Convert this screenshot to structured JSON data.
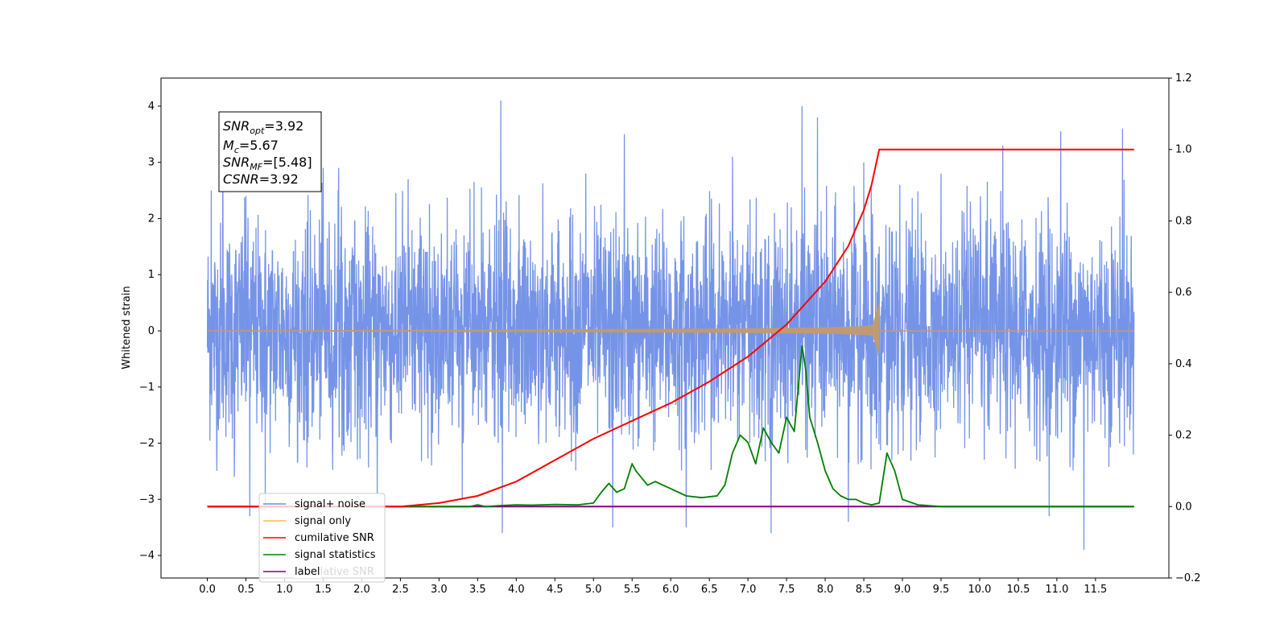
{
  "chart_data": {
    "type": "line",
    "ylabel": "Whitened strain",
    "xlim": [
      -0.6,
      12.45
    ],
    "ylim_left": [
      -4.4,
      4.5
    ],
    "ylim_right": [
      -0.2,
      1.2
    ],
    "x_ticks": [
      0.0,
      0.5,
      1.0,
      1.5,
      2.0,
      2.5,
      3.0,
      3.5,
      4.0,
      4.5,
      5.0,
      5.5,
      6.0,
      6.5,
      7.0,
      7.5,
      8.0,
      8.5,
      9.0,
      9.5,
      10.0,
      10.5,
      11.0,
      11.5
    ],
    "x_tick_labels": [
      "0.0",
      "0.5",
      "1.0",
      "1.5",
      "2.0",
      "2.5",
      "3.0",
      "3.5",
      "4.0",
      "4.5",
      "5.0",
      "5.5",
      "6.0",
      "6.5",
      "7.0",
      "7.5",
      "8.0",
      "8.5",
      "9.0",
      "9.5",
      "10.0",
      "10.5",
      "11.0",
      "11.5"
    ],
    "y_left_ticks": [
      4,
      3,
      2,
      1,
      0,
      -1,
      -2,
      -3,
      -4
    ],
    "y_left_tick_labels": [
      "4",
      "3",
      "2",
      "1",
      "0",
      "−1",
      "−2",
      "−3",
      "−4"
    ],
    "y_right_ticks": [
      1.2,
      1.0,
      0.8,
      0.6,
      0.4,
      0.2,
      0.0,
      -0.2
    ],
    "y_right_tick_labels": [
      "1.2",
      "1.0",
      "0.8",
      "0.6",
      "0.4",
      "0.2",
      "0.0",
      "−0.2"
    ],
    "annotation": {
      "lines": [
        {
          "sym": "SNR",
          "sub": "opt",
          "value": "=3.92"
        },
        {
          "sym": "M",
          "sub": "c",
          "value": "=5.67"
        },
        {
          "sym": "SNR",
          "sub": "MF",
          "value": "=[5.48]"
        },
        {
          "sym": "CSNR",
          "sub": "",
          "value": "=3.92"
        }
      ]
    },
    "series": [
      {
        "name": "signal+ noise",
        "color": "#6f8ee6",
        "axis": "left",
        "x_range": [
          0.0,
          12.0
        ],
        "envelope_upper": 2.4,
        "envelope_lower": -2.2,
        "spikes": [
          {
            "x": 0.05,
            "y": 2.5
          },
          {
            "x": 0.12,
            "y": -2.1
          },
          {
            "x": 0.2,
            "y": 3.2
          },
          {
            "x": 0.35,
            "y": -2.6
          },
          {
            "x": 0.5,
            "y": 2.4
          },
          {
            "x": 0.55,
            "y": -3.3
          },
          {
            "x": 0.75,
            "y": -3.2
          },
          {
            "x": 1.5,
            "y": 2.9
          },
          {
            "x": 1.7,
            "y": 2.9
          },
          {
            "x": 2.2,
            "y": -2.9
          },
          {
            "x": 2.6,
            "y": 2.7
          },
          {
            "x": 3.3,
            "y": -3.0
          },
          {
            "x": 3.8,
            "y": 4.1
          },
          {
            "x": 3.82,
            "y": -3.6
          },
          {
            "x": 4.9,
            "y": 2.8
          },
          {
            "x": 5.25,
            "y": -3.5
          },
          {
            "x": 5.4,
            "y": 3.5
          },
          {
            "x": 6.2,
            "y": -3.5
          },
          {
            "x": 6.8,
            "y": 3.1
          },
          {
            "x": 7.3,
            "y": -3.6
          },
          {
            "x": 7.7,
            "y": 4.0
          },
          {
            "x": 7.9,
            "y": 3.8
          },
          {
            "x": 8.3,
            "y": -3.4
          },
          {
            "x": 8.5,
            "y": 3.0
          },
          {
            "x": 9.5,
            "y": 2.8
          },
          {
            "x": 10.3,
            "y": 3.3
          },
          {
            "x": 10.9,
            "y": -3.3
          },
          {
            "x": 11.05,
            "y": 3.55
          },
          {
            "x": 11.35,
            "y": -3.9
          },
          {
            "x": 11.85,
            "y": 3.6
          }
        ]
      },
      {
        "name": "signal only",
        "color": "#ffb84d",
        "axis": "left",
        "x_range": [
          0.0,
          12.0
        ],
        "merger_time": 8.7,
        "peak_amplitude": 0.5
      },
      {
        "name": "cumilative SNR",
        "color": "#ff0000",
        "axis": "right",
        "x": [
          0.0,
          2.5,
          3.0,
          3.5,
          4.0,
          4.5,
          5.0,
          5.5,
          6.0,
          6.5,
          7.0,
          7.5,
          8.0,
          8.3,
          8.5,
          8.6,
          8.7,
          12.0
        ],
        "y": [
          0.0,
          0.0,
          0.01,
          0.03,
          0.07,
          0.13,
          0.19,
          0.24,
          0.29,
          0.35,
          0.42,
          0.51,
          0.63,
          0.73,
          0.83,
          0.9,
          1.0,
          1.0
        ]
      },
      {
        "name": "signal statistics",
        "color": "#008000",
        "axis": "right",
        "x": [
          0.0,
          3.4,
          3.5,
          3.6,
          3.8,
          4.0,
          4.2,
          4.5,
          4.8,
          5.0,
          5.1,
          5.2,
          5.3,
          5.4,
          5.5,
          5.55,
          5.7,
          5.8,
          5.9,
          6.0,
          6.1,
          6.2,
          6.4,
          6.6,
          6.7,
          6.8,
          6.9,
          7.0,
          7.1,
          7.2,
          7.3,
          7.4,
          7.5,
          7.6,
          7.7,
          7.75,
          7.8,
          7.9,
          8.0,
          8.1,
          8.2,
          8.3,
          8.4,
          8.5,
          8.6,
          8.7,
          8.8,
          8.9,
          9.0,
          9.2,
          9.5,
          12.0
        ],
        "y": [
          0.0,
          0.0,
          0.005,
          0.0,
          0.003,
          0.005,
          0.004,
          0.006,
          0.005,
          0.01,
          0.04,
          0.065,
          0.04,
          0.05,
          0.12,
          0.1,
          0.06,
          0.07,
          0.06,
          0.05,
          0.04,
          0.03,
          0.025,
          0.03,
          0.06,
          0.15,
          0.2,
          0.18,
          0.12,
          0.22,
          0.18,
          0.15,
          0.25,
          0.21,
          0.45,
          0.38,
          0.25,
          0.18,
          0.1,
          0.05,
          0.03,
          0.02,
          0.02,
          0.01,
          0.005,
          0.01,
          0.15,
          0.1,
          0.02,
          0.005,
          0.0,
          0.0
        ]
      },
      {
        "name": "label",
        "color": "#800080",
        "axis": "right",
        "x": [
          0.0,
          12.0
        ],
        "y": [
          0.0,
          0.0
        ]
      }
    ],
    "legend": {
      "location": "lower-left",
      "entries": [
        "signal+ noise",
        "signal only",
        "cumilative SNR",
        "signal statistics",
        "label"
      ],
      "hidden_text": "cumilative SNR"
    }
  }
}
